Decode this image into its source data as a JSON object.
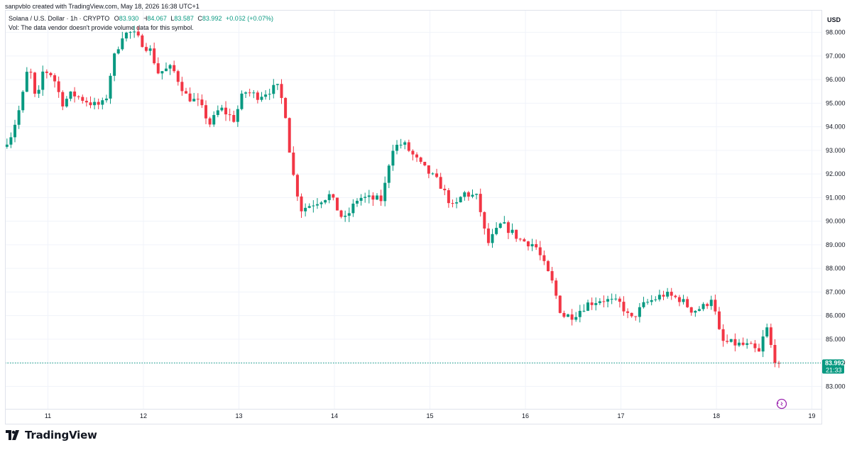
{
  "header": {
    "credit": "sanpvblo created with TradingView.com, May 18, 2026 16:38 UTC+1",
    "symbol": "Solana / U.S. Dollar · 1h · CRYPTO",
    "o_label": "O",
    "o_value": "83.930",
    "h_label": "H",
    "h_value": "84.067",
    "l_label": "L",
    "l_value": "83.587",
    "c_label": "C",
    "c_value": "83.992",
    "change": "+0.062 (+0.07%)",
    "vol_note": "Vol: The data vendor doesn't provide volume data for this symbol."
  },
  "price_scale": {
    "currency": "USD"
  },
  "last_price": {
    "value": "83.992",
    "countdown": "21:33"
  },
  "brand": {
    "name": "TradingView"
  },
  "colors": {
    "up": "#089981",
    "down": "#f23645",
    "grid": "#f0f3fa",
    "axis": "#e0e3eb"
  },
  "chart_data": {
    "type": "candlestick",
    "interval": "1h",
    "y_ticks": [
      "83.000",
      "84.000",
      "85.000",
      "86.000",
      "87.000",
      "88.000",
      "89.000",
      "90.000",
      "91.000",
      "92.000",
      "93.000",
      "94.000",
      "95.000",
      "96.000",
      "97.000",
      "98.000"
    ],
    "x_ticks": [
      {
        "label": "11",
        "t": 1.0
      },
      {
        "label": "12",
        "t": 2.0
      },
      {
        "label": "13",
        "t": 3.0
      },
      {
        "label": "14",
        "t": 4.0
      },
      {
        "label": "15",
        "t": 5.0
      },
      {
        "label": "16",
        "t": 6.0
      },
      {
        "label": "17",
        "t": 7.0
      },
      {
        "label": "18",
        "t": 8.0
      },
      {
        "label": "19",
        "t": 9.0
      }
    ],
    "x_range": [
      0.55,
      9.1
    ],
    "ylim": [
      82.05,
      98.95
    ],
    "grid": true,
    "last_close": 83.992,
    "anchors": [
      [
        0.55,
        93.3
      ],
      [
        0.62,
        93.7
      ],
      [
        0.72,
        95.0
      ],
      [
        0.8,
        96.7
      ],
      [
        0.88,
        94.9
      ],
      [
        0.95,
        96.4
      ],
      [
        1.05,
        96.2
      ],
      [
        1.15,
        95.0
      ],
      [
        1.25,
        95.4
      ],
      [
        1.35,
        95.2
      ],
      [
        1.5,
        94.9
      ],
      [
        1.6,
        95.0
      ],
      [
        1.68,
        96.8
      ],
      [
        1.78,
        97.9
      ],
      [
        1.88,
        98.0
      ],
      [
        2.0,
        97.5
      ],
      [
        2.08,
        97.2
      ],
      [
        2.15,
        96.3
      ],
      [
        2.3,
        96.5
      ],
      [
        2.45,
        95.3
      ],
      [
        2.58,
        95.0
      ],
      [
        2.7,
        94.1
      ],
      [
        2.8,
        94.8
      ],
      [
        2.95,
        94.3
      ],
      [
        3.05,
        95.5
      ],
      [
        3.2,
        95.3
      ],
      [
        3.4,
        95.7
      ],
      [
        3.48,
        94.8
      ],
      [
        3.55,
        92.3
      ],
      [
        3.65,
        90.5
      ],
      [
        3.8,
        90.8
      ],
      [
        3.95,
        91.1
      ],
      [
        4.1,
        90.0
      ],
      [
        4.25,
        91.0
      ],
      [
        4.5,
        90.9
      ],
      [
        4.6,
        93.1
      ],
      [
        4.72,
        93.3
      ],
      [
        4.9,
        92.4
      ],
      [
        5.1,
        91.6
      ],
      [
        5.25,
        90.5
      ],
      [
        5.35,
        91.2
      ],
      [
        5.5,
        91.0
      ],
      [
        5.6,
        89.0
      ],
      [
        5.75,
        89.9
      ],
      [
        5.95,
        89.2
      ],
      [
        6.1,
        89.0
      ],
      [
        6.28,
        87.4
      ],
      [
        6.38,
        86.0
      ],
      [
        6.5,
        86.0
      ],
      [
        6.65,
        86.5
      ],
      [
        6.8,
        86.7
      ],
      [
        7.0,
        86.5
      ],
      [
        7.1,
        85.8
      ],
      [
        7.25,
        86.5
      ],
      [
        7.45,
        86.9
      ],
      [
        7.62,
        86.7
      ],
      [
        7.75,
        86.2
      ],
      [
        7.88,
        86.4
      ],
      [
        7.95,
        86.8
      ],
      [
        8.05,
        84.9
      ],
      [
        8.2,
        84.8
      ],
      [
        8.35,
        84.7
      ],
      [
        8.45,
        84.4
      ],
      [
        8.52,
        85.6
      ],
      [
        8.6,
        84.2
      ],
      [
        8.67,
        83.992
      ]
    ]
  }
}
